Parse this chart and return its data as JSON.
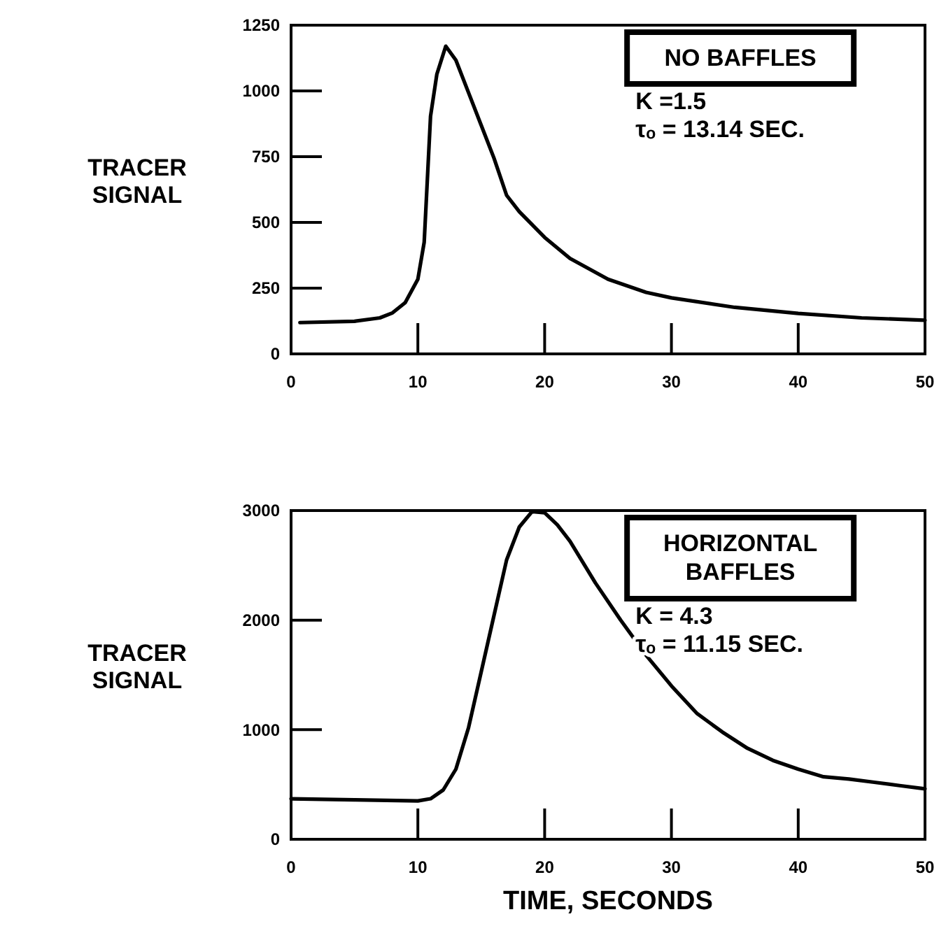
{
  "chart_data": [
    {
      "type": "line",
      "ylabel": "TRACER SIGNAL",
      "xlim": [
        0,
        50
      ],
      "xticks": [
        0,
        10,
        20,
        30,
        40,
        50
      ],
      "ylim": [
        0,
        1250
      ],
      "yticks": [
        0,
        250,
        500,
        750,
        1000,
        1250
      ],
      "line_style": "solid",
      "annotations": [
        "NO BAFFLES",
        "K =1.5",
        "τₒ = 13.14 SEC."
      ],
      "series": [
        {
          "color": "#000000",
          "x": [
            0.7,
            5,
            7,
            8,
            9,
            10,
            10.5,
            11,
            11.5,
            12.2,
            13,
            14,
            15,
            16,
            17,
            18,
            20,
            22,
            25,
            28,
            30,
            35,
            40,
            45,
            50
          ],
          "values": [
            119,
            124,
            137,
            156,
            195,
            284,
            425,
            904,
            1064,
            1170,
            1117,
            993,
            869,
            745,
            603,
            541,
            443,
            363,
            284,
            234,
            213,
            177,
            154,
            137,
            128
          ]
        }
      ]
    },
    {
      "type": "line",
      "ylabel": "TRACER SIGNAL",
      "xlabel": "TIME, SECONDS",
      "xlim": [
        0,
        50
      ],
      "xticks": [
        0,
        10,
        20,
        30,
        40,
        50
      ],
      "ylim": [
        0,
        3000
      ],
      "yticks": [
        0,
        1000,
        2000,
        3000
      ],
      "line_style": "solid",
      "annotations": [
        "HORIZONTAL\nBAFFLES",
        "K = 4.3",
        "τₒ = 11.15 SEC."
      ],
      "series": [
        {
          "color": "#000000",
          "x": [
            0,
            5,
            10,
            11,
            12,
            13,
            14,
            15,
            16,
            17,
            18,
            19,
            20,
            21,
            22,
            24,
            26,
            28,
            30,
            32,
            34,
            36,
            38,
            40,
            42,
            44,
            46,
            48,
            50
          ],
          "values": [
            370,
            360,
            350,
            370,
            450,
            640,
            1020,
            1530,
            2040,
            2550,
            2850,
            2990,
            2980,
            2870,
            2720,
            2340,
            2000,
            1680,
            1400,
            1150,
            980,
            830,
            720,
            640,
            570,
            550,
            520,
            490,
            460
          ]
        }
      ]
    }
  ]
}
